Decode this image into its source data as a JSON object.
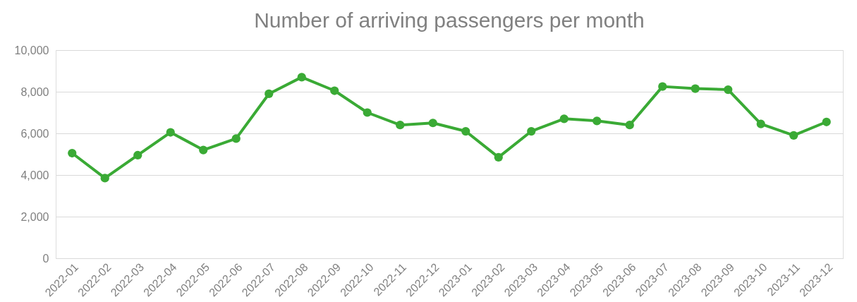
{
  "chart_data": {
    "type": "line",
    "title": "Number of arriving passengers per month",
    "categories": [
      "2022-01",
      "2022-02",
      "2022-03",
      "2022-04",
      "2022-05",
      "2022-06",
      "2022-07",
      "2022-08",
      "2022-09",
      "2022-10",
      "2022-11",
      "2022-12",
      "2023-01",
      "2023-02",
      "2023-03",
      "2023-04",
      "2023-05",
      "2023-06",
      "2023-07",
      "2023-08",
      "2023-09",
      "2023-10",
      "2023-11",
      "2023-12"
    ],
    "series": [
      {
        "color": "#3aaa35",
        "values": [
          5050,
          3850,
          4950,
          6050,
          5200,
          5750,
          7900,
          8700,
          8050,
          7000,
          6400,
          6500,
          6100,
          4850,
          6100,
          6700,
          6600,
          6400,
          8250,
          8150,
          8100,
          6450,
          5900,
          6550
        ]
      }
    ],
    "ylim": [
      0,
      10000
    ],
    "yticks": [
      {
        "value": 0,
        "label": "0"
      },
      {
        "value": 2000,
        "label": "2,000"
      },
      {
        "value": 4000,
        "label": "4,000"
      },
      {
        "value": 6000,
        "label": "6,000"
      },
      {
        "value": 8000,
        "label": "8,000"
      },
      {
        "value": 10000,
        "label": "10,000"
      }
    ],
    "grid": "y",
    "marker": "circle",
    "line_style": "solid"
  }
}
